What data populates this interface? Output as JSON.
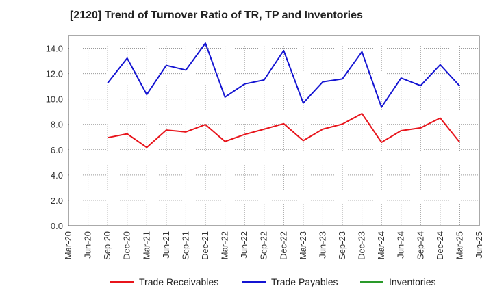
{
  "title": "[2120]  Trend of Turnover Ratio of TR, TP and Inventories",
  "chart_data": {
    "type": "line",
    "title": "[2120]  Trend of Turnover Ratio of TR, TP and Inventories",
    "x": [
      "Mar-20",
      "Jun-20",
      "Sep-20",
      "Dec-20",
      "Mar-21",
      "Jun-21",
      "Sep-21",
      "Dec-21",
      "Mar-22",
      "Jun-22",
      "Sep-22",
      "Dec-22",
      "Mar-23",
      "Jun-23",
      "Sep-23",
      "Dec-23",
      "Mar-24",
      "Jun-24",
      "Sep-24",
      "Dec-24",
      "Mar-25",
      "Jun-25"
    ],
    "ylim": [
      0,
      15
    ],
    "yticks": [
      0,
      2,
      4,
      6,
      8,
      10,
      12,
      14
    ],
    "ytick_labels": [
      "0.0",
      "2.0",
      "4.0",
      "6.0",
      "8.0",
      "10.0",
      "12.0",
      "14.0"
    ],
    "grid": true,
    "legend_position": "bottom",
    "series": [
      {
        "name": "Trade Receivables",
        "color": "#e8141b",
        "values": [
          null,
          null,
          6.95,
          7.25,
          6.18,
          7.55,
          7.4,
          7.98,
          6.65,
          7.2,
          7.62,
          8.05,
          6.72,
          7.62,
          8.02,
          8.85,
          6.58,
          7.5,
          7.72,
          8.5,
          6.58,
          null
        ]
      },
      {
        "name": "Trade Payables",
        "color": "#1414d2",
        "values": [
          null,
          null,
          11.25,
          13.22,
          10.35,
          12.65,
          12.28,
          14.4,
          10.15,
          11.18,
          11.5,
          13.82,
          9.68,
          11.35,
          11.58,
          13.72,
          9.35,
          11.65,
          11.05,
          12.7,
          11.02,
          null
        ]
      },
      {
        "name": "Inventories",
        "color": "#2a9a2a",
        "values": [
          null,
          null,
          null,
          null,
          null,
          null,
          null,
          null,
          null,
          null,
          null,
          null,
          null,
          null,
          null,
          null,
          null,
          null,
          null,
          null,
          null,
          null
        ]
      }
    ]
  }
}
